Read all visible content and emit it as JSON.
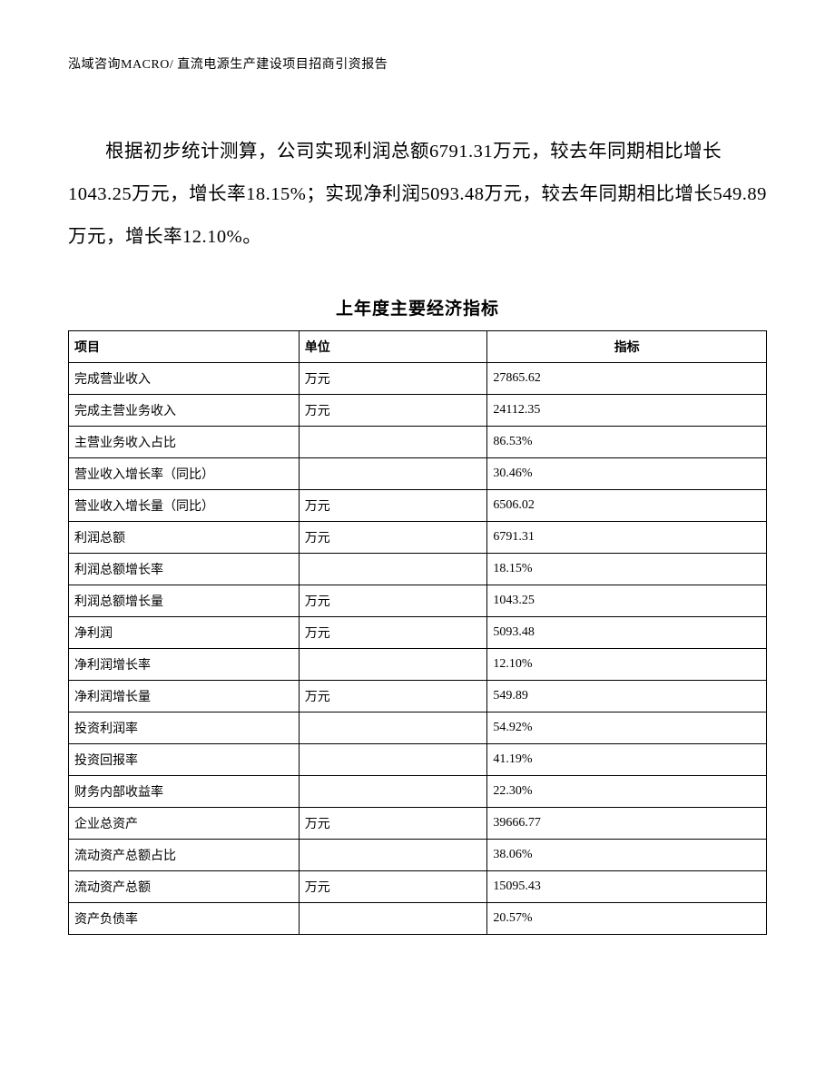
{
  "header": "泓域咨询MACRO/ 直流电源生产建设项目招商引资报告",
  "paragraph": "根据初步统计测算，公司实现利润总额6791.31万元，较去年同期相比增长1043.25万元，增长率18.15%；实现净利润5093.48万元，较去年同期相比增长549.89万元，增长率12.10%。",
  "table": {
    "title": "上年度主要经济指标",
    "columns": [
      "项目",
      "单位",
      "指标"
    ],
    "rows": [
      {
        "item": "完成营业收入",
        "unit": "万元",
        "value": "27865.62"
      },
      {
        "item": "完成主营业务收入",
        "unit": "万元",
        "value": "24112.35"
      },
      {
        "item": "主营业务收入占比",
        "unit": "",
        "value": "86.53%"
      },
      {
        "item": "营业收入增长率（同比）",
        "unit": "",
        "value": "30.46%"
      },
      {
        "item": "营业收入增长量（同比）",
        "unit": "万元",
        "value": "6506.02"
      },
      {
        "item": "利润总额",
        "unit": "万元",
        "value": "6791.31"
      },
      {
        "item": "利润总额增长率",
        "unit": "",
        "value": "18.15%"
      },
      {
        "item": "利润总额增长量",
        "unit": "万元",
        "value": "1043.25"
      },
      {
        "item": "净利润",
        "unit": "万元",
        "value": "5093.48"
      },
      {
        "item": "净利润增长率",
        "unit": "",
        "value": "12.10%"
      },
      {
        "item": "净利润增长量",
        "unit": "万元",
        "value": "549.89"
      },
      {
        "item": "投资利润率",
        "unit": "",
        "value": "54.92%"
      },
      {
        "item": "投资回报率",
        "unit": "",
        "value": "41.19%"
      },
      {
        "item": "财务内部收益率",
        "unit": "",
        "value": "22.30%"
      },
      {
        "item": "企业总资产",
        "unit": "万元",
        "value": "39666.77"
      },
      {
        "item": "流动资产总额占比",
        "unit": "",
        "value": "38.06%"
      },
      {
        "item": "流动资产总额",
        "unit": "万元",
        "value": "15095.43"
      },
      {
        "item": "资产负债率",
        "unit": "",
        "value": "20.57%"
      }
    ]
  }
}
